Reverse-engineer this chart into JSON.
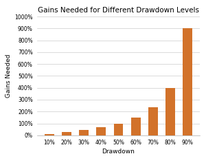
{
  "categories": [
    "10%",
    "20%",
    "30%",
    "40%",
    "50%",
    "60%",
    "70%",
    "80%",
    "90%"
  ],
  "values": [
    11.11,
    25.0,
    42.86,
    66.67,
    100.0,
    150.0,
    233.33,
    400.0,
    900.0
  ],
  "bar_color": "#D2722A",
  "title": "Gains Needed for Different Drawdown Levels",
  "xlabel": "Drawdown",
  "ylabel": "Gains Needed",
  "ylim": [
    0,
    1000
  ],
  "yticks": [
    0,
    100,
    200,
    300,
    400,
    500,
    600,
    700,
    800,
    900,
    1000
  ],
  "title_fontsize": 7.5,
  "label_fontsize": 6.5,
  "tick_fontsize": 5.5,
  "bar_width": 0.55,
  "background_color": "#ffffff",
  "grid_color": "#cccccc",
  "grid_linewidth": 0.5
}
